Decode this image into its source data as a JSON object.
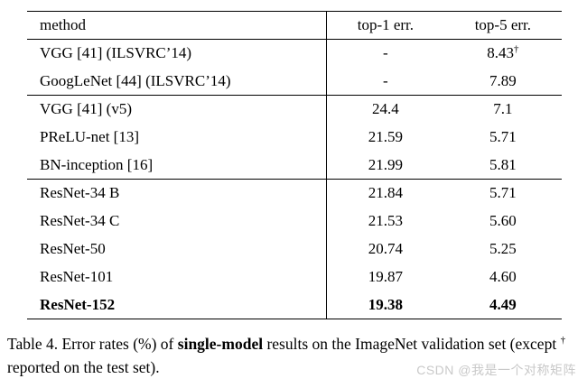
{
  "table": {
    "headers": [
      "method",
      "top-1 err.",
      "top-5 err."
    ],
    "groups": [
      {
        "rows": [
          {
            "method": "VGG [41] (ILSVRC’14)",
            "top1": "-",
            "top5": "8.43",
            "top5_sup": "†"
          },
          {
            "method": "GoogLeNet [44] (ILSVRC’14)",
            "top1": "-",
            "top5": "7.89"
          }
        ]
      },
      {
        "rows": [
          {
            "method": "VGG [41] (v5)",
            "top1": "24.4",
            "top5": "7.1"
          },
          {
            "method": "PReLU-net [13]",
            "top1": "21.59",
            "top5": "5.71"
          },
          {
            "method": "BN-inception [16]",
            "top1": "21.99",
            "top5": "5.81"
          }
        ]
      },
      {
        "rows": [
          {
            "method": "ResNet-34 B",
            "top1": "21.84",
            "top5": "5.71"
          },
          {
            "method": "ResNet-34 C",
            "top1": "21.53",
            "top5": "5.60"
          },
          {
            "method": "ResNet-50",
            "top1": "20.74",
            "top5": "5.25"
          },
          {
            "method": "ResNet-101",
            "top1": "19.87",
            "top5": "4.60"
          },
          {
            "method": "ResNet-152",
            "top1": "19.38",
            "top5": "4.49",
            "bold": true
          }
        ]
      }
    ]
  },
  "caption": {
    "part1": "Table 4. Error rates (%) of ",
    "bold": "single-model",
    "part2": " results on the ImageNet validation set (except ",
    "sup": "†",
    "part3": " reported on the test set)."
  },
  "watermark": {
    "text": "CSDN @我是一个对称矩阵",
    "color": "#c9c9c9"
  },
  "colors": {
    "text": "#000000",
    "background": "#ffffff"
  }
}
